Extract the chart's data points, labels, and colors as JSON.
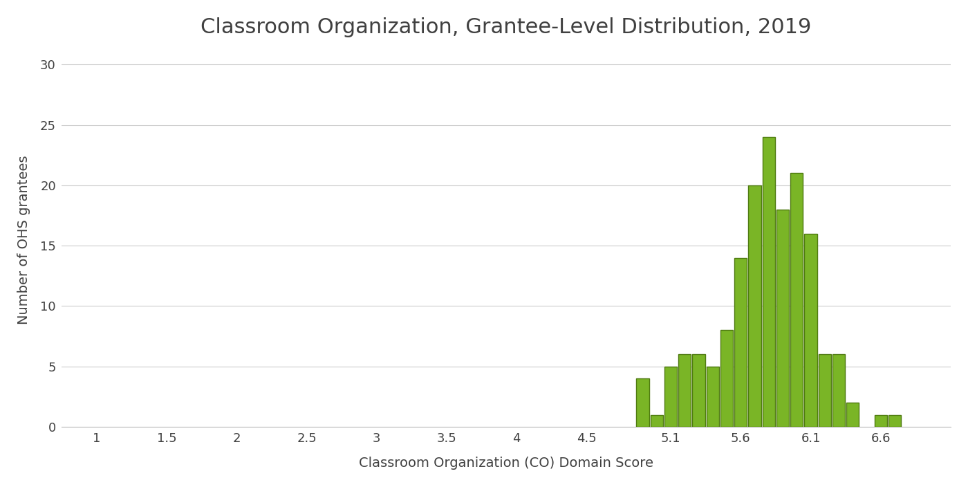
{
  "title": "Classroom Organization, Grantee-Level Distribution, 2019",
  "xlabel": "Classroom Organization (CO) Domain Score",
  "ylabel": "Number of OHS grantees",
  "bar_data": [
    {
      "x": 4.9,
      "height": 4
    },
    {
      "x": 5.0,
      "height": 1
    },
    {
      "x": 5.1,
      "height": 5
    },
    {
      "x": 5.2,
      "height": 6
    },
    {
      "x": 5.3,
      "height": 6
    },
    {
      "x": 5.4,
      "height": 5
    },
    {
      "x": 5.5,
      "height": 8
    },
    {
      "x": 5.6,
      "height": 14
    },
    {
      "x": 5.7,
      "height": 20
    },
    {
      "x": 5.8,
      "height": 24
    },
    {
      "x": 5.9,
      "height": 18
    },
    {
      "x": 6.0,
      "height": 21
    },
    {
      "x": 6.1,
      "height": 16
    },
    {
      "x": 6.2,
      "height": 6
    },
    {
      "x": 6.3,
      "height": 6
    },
    {
      "x": 6.4,
      "height": 2
    },
    {
      "x": 6.6,
      "height": 1
    },
    {
      "x": 6.7,
      "height": 1
    }
  ],
  "bar_color_main": "#7ab526",
  "bar_color_edge": "#4e7a10",
  "bar_width": 0.09,
  "xlim": [
    0.75,
    7.1
  ],
  "ylim": [
    0,
    31
  ],
  "xtick_positions": [
    1.0,
    1.5,
    2.0,
    2.5,
    3.0,
    3.5,
    4.0,
    4.5,
    5.1,
    5.6,
    6.1,
    6.6
  ],
  "xtick_labels": [
    "1",
    "1.5",
    "2",
    "2.5",
    "3",
    "3.5",
    "4",
    "4.5",
    "5.1",
    "5.6",
    "6.1",
    "6.6"
  ],
  "yticks": [
    0,
    5,
    10,
    15,
    20,
    25,
    30
  ],
  "title_fontsize": 22,
  "axis_label_fontsize": 14,
  "tick_fontsize": 13,
  "background_color": "#ffffff",
  "grid_color": "#cccccc",
  "text_color": "#404040"
}
